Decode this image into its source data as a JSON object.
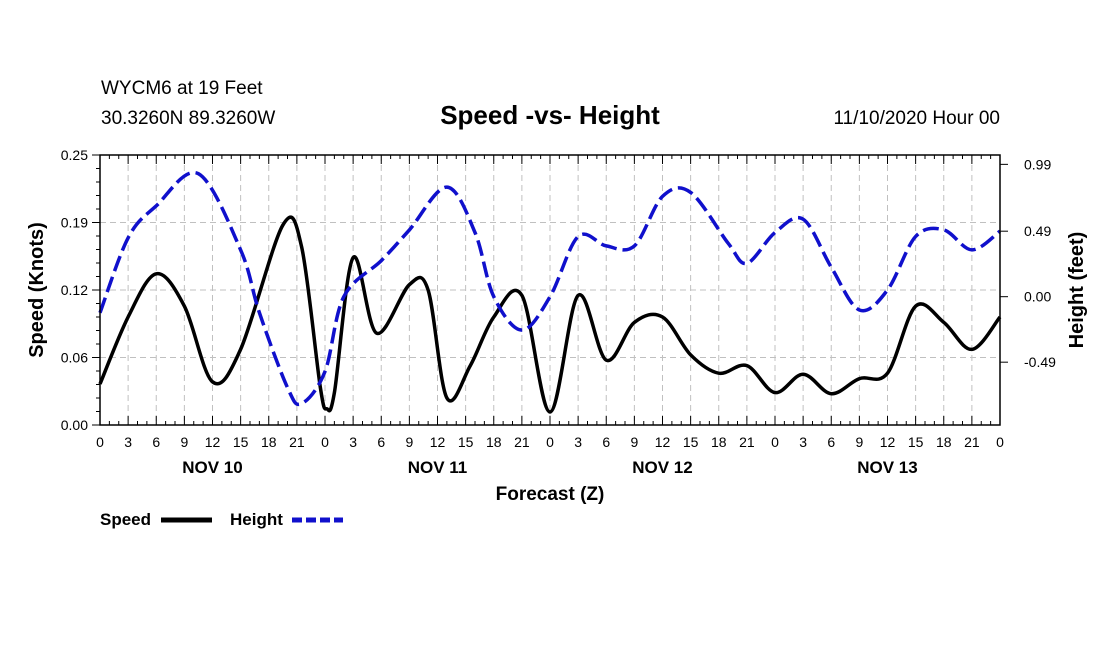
{
  "header": {
    "station_line": "WYCM6 at 19 Feet",
    "coords_line": "30.3260N 89.3260W",
    "title": "Speed -vs- Height",
    "run_line": "11/10/2020 Hour 00"
  },
  "legend": {
    "speed_label": "Speed",
    "height_label": "Height"
  },
  "colors": {
    "speed": "#000000",
    "height": "#1010cc",
    "grid": "#c0c0c0"
  },
  "chart_data": {
    "type": "line",
    "title": "Speed -vs- Height",
    "xlabel": "Forecast (Z)",
    "ylabel": "Speed (Knots)",
    "y2label": "Height (feet)",
    "grid": true,
    "legend_position": "bottom-left",
    "x_range_hours": [
      0,
      96
    ],
    "x_tick_labels": [
      "0",
      "3",
      "6",
      "9",
      "12",
      "15",
      "18",
      "21",
      "0",
      "3",
      "6",
      "9",
      "12",
      "15",
      "18",
      "21",
      "0",
      "3",
      "6",
      "9",
      "12",
      "15",
      "18",
      "21",
      "0",
      "3",
      "6",
      "9",
      "12",
      "15",
      "18",
      "21",
      "0"
    ],
    "day_labels": [
      {
        "label": "NOV 10",
        "hour": 12
      },
      {
        "label": "NOV 11",
        "hour": 36
      },
      {
        "label": "NOV 12",
        "hour": 60
      },
      {
        "label": "NOV 13",
        "hour": 84
      }
    ],
    "y_left": {
      "range": [
        0,
        0.25
      ],
      "ticks": [
        "0.00",
        "0.06",
        "0.12",
        "0.19",
        "0.25"
      ],
      "tick_values": [
        0,
        0.0625,
        0.125,
        0.1875,
        0.25
      ]
    },
    "y_right": {
      "range": [
        -0.96,
        1.06
      ],
      "ticks": [
        "-0.49",
        "0.00",
        "0.49",
        "0.99"
      ],
      "tick_values": [
        -0.49,
        0.0,
        0.49,
        0.99
      ]
    },
    "series": [
      {
        "name": "Speed",
        "axis": "left",
        "style": "solid",
        "x": [
          0,
          3,
          6,
          9,
          12,
          15,
          19.5,
          21.5,
          23.5,
          24.2,
          25,
          27,
          29.5,
          33,
          35,
          37,
          39.5,
          42,
          45,
          48,
          51,
          54,
          57,
          60,
          63,
          66,
          69,
          72,
          75,
          78,
          81,
          84,
          87,
          90,
          93,
          96
        ],
        "y": [
          0.038,
          0.1,
          0.14,
          0.11,
          0.04,
          0.07,
          0.185,
          0.165,
          0.035,
          0.015,
          0.03,
          0.155,
          0.085,
          0.13,
          0.125,
          0.025,
          0.055,
          0.1,
          0.12,
          0.012,
          0.12,
          0.06,
          0.095,
          0.1,
          0.065,
          0.048,
          0.055,
          0.03,
          0.047,
          0.029,
          0.043,
          0.048,
          0.11,
          0.095,
          0.07,
          0.1
        ]
      },
      {
        "name": "Height",
        "axis": "right",
        "style": "dashed",
        "x": [
          0,
          3,
          6,
          10.5,
          15,
          17,
          20,
          21.5,
          24,
          26,
          30,
          33,
          37,
          40,
          42,
          45,
          48,
          51,
          54,
          57,
          60,
          63,
          67,
          69,
          72,
          75,
          78,
          81,
          84,
          87,
          90,
          93,
          96
        ],
        "y": [
          -0.12,
          0.44,
          0.68,
          0.92,
          0.35,
          -0.12,
          -0.68,
          -0.8,
          -0.56,
          0.0,
          0.27,
          0.5,
          0.82,
          0.48,
          0.0,
          -0.25,
          0.0,
          0.45,
          0.38,
          0.38,
          0.75,
          0.78,
          0.4,
          0.25,
          0.48,
          0.58,
          0.22,
          -0.1,
          0.05,
          0.45,
          0.5,
          0.35,
          0.49
        ]
      }
    ]
  }
}
